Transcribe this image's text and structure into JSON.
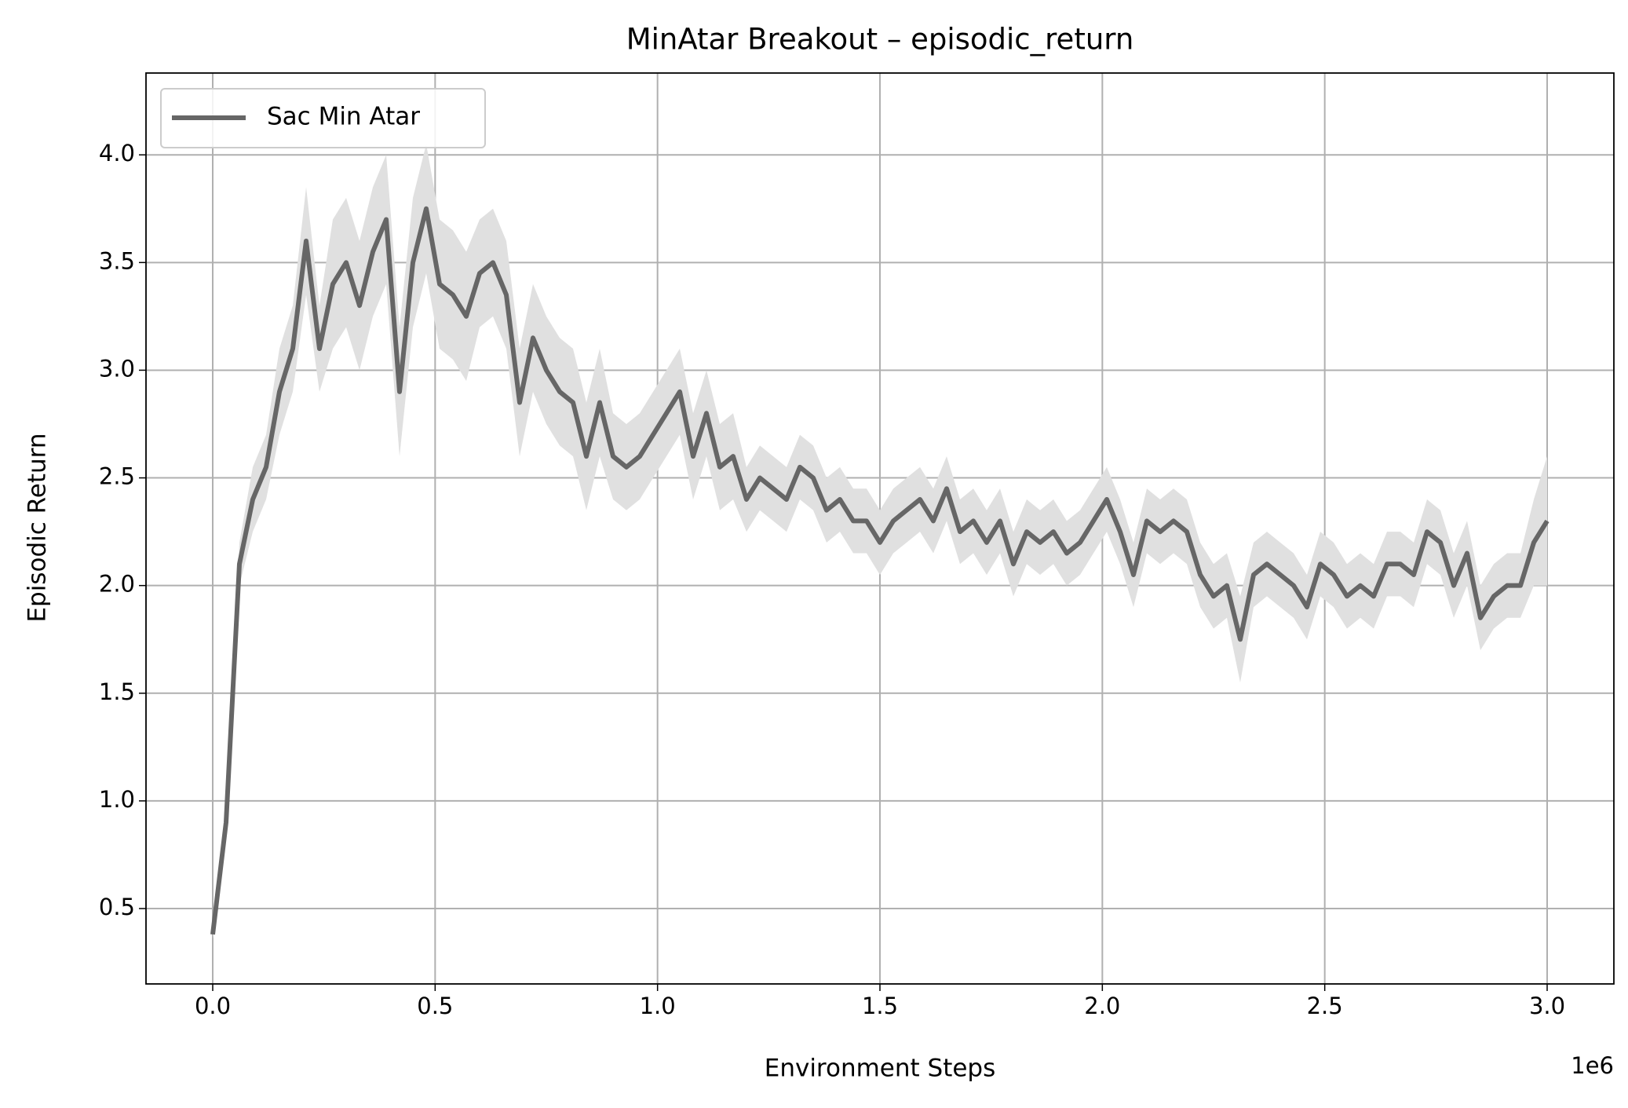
{
  "chart_data": {
    "type": "line",
    "title": "MinAtar Breakout – episodic_return",
    "x_label": "Environment Steps",
    "y_label": "Episodic Return",
    "x_offset_label": "1e6",
    "grid": true,
    "legend_position": "upper left",
    "x": [
      0,
      30000,
      60000,
      90000,
      120000,
      150000,
      180000,
      210000,
      240000,
      270000,
      300000,
      330000,
      360000,
      390000,
      420000,
      450000,
      480000,
      510000,
      540000,
      570000,
      600000,
      630000,
      660000,
      690000,
      720000,
      750000,
      780000,
      810000,
      840000,
      870000,
      900000,
      930000,
      960000,
      990000,
      1020000,
      1050000,
      1080000,
      1110000,
      1140000,
      1170000,
      1200000,
      1230000,
      1260000,
      1290000,
      1320000,
      1350000,
      1380000,
      1410000,
      1440000,
      1470000,
      1500000,
      1530000,
      1560000,
      1590000,
      1620000,
      1650000,
      1680000,
      1710000,
      1740000,
      1770000,
      1800000,
      1830000,
      1860000,
      1890000,
      1920000,
      1950000,
      1980000,
      2010000,
      2040000,
      2070000,
      2100000,
      2130000,
      2160000,
      2190000,
      2220000,
      2250000,
      2280000,
      2310000,
      2340000,
      2370000,
      2400000,
      2430000,
      2460000,
      2490000,
      2520000,
      2550000,
      2580000,
      2610000,
      2640000,
      2670000,
      2700000,
      2730000,
      2760000,
      2790000,
      2820000,
      2850000,
      2880000,
      2910000,
      2940000,
      2970000,
      3000000
    ],
    "series": [
      {
        "name": "Sac Min Atar",
        "color": "#666666",
        "band_color": "#e0e0e0",
        "values": [
          0.38,
          0.9,
          2.1,
          2.4,
          2.55,
          2.9,
          3.1,
          3.6,
          3.1,
          3.4,
          3.5,
          3.3,
          3.55,
          3.7,
          2.9,
          3.5,
          3.75,
          3.4,
          3.35,
          3.25,
          3.45,
          3.5,
          3.35,
          2.85,
          3.15,
          3.0,
          2.9,
          2.85,
          2.6,
          2.85,
          2.6,
          2.55,
          2.6,
          2.7,
          2.8,
          2.9,
          2.6,
          2.8,
          2.55,
          2.6,
          2.4,
          2.5,
          2.45,
          2.4,
          2.55,
          2.5,
          2.35,
          2.4,
          2.3,
          2.3,
          2.2,
          2.3,
          2.35,
          2.4,
          2.3,
          2.45,
          2.25,
          2.3,
          2.2,
          2.3,
          2.1,
          2.25,
          2.2,
          2.25,
          2.15,
          2.2,
          2.3,
          2.4,
          2.25,
          2.05,
          2.3,
          2.25,
          2.3,
          2.25,
          2.05,
          1.95,
          2.0,
          1.75,
          2.05,
          2.1,
          2.05,
          2.0,
          1.9,
          2.1,
          2.05,
          1.95,
          2.0,
          1.95,
          2.1,
          2.1,
          2.05,
          2.25,
          2.2,
          2.0,
          2.15,
          1.85,
          1.95,
          2.0,
          2.0,
          2.2,
          2.3
        ],
        "lower": [
          0.36,
          0.85,
          2.0,
          2.25,
          2.4,
          2.7,
          2.9,
          3.35,
          2.9,
          3.1,
          3.2,
          3.0,
          3.25,
          3.4,
          2.6,
          3.2,
          3.45,
          3.1,
          3.05,
          2.95,
          3.2,
          3.25,
          3.1,
          2.6,
          2.9,
          2.75,
          2.65,
          2.6,
          2.35,
          2.6,
          2.4,
          2.35,
          2.4,
          2.5,
          2.6,
          2.7,
          2.4,
          2.6,
          2.35,
          2.4,
          2.25,
          2.35,
          2.3,
          2.25,
          2.4,
          2.35,
          2.2,
          2.25,
          2.15,
          2.15,
          2.05,
          2.15,
          2.2,
          2.25,
          2.15,
          2.3,
          2.1,
          2.15,
          2.05,
          2.15,
          1.95,
          2.1,
          2.05,
          2.1,
          2.0,
          2.05,
          2.15,
          2.25,
          2.1,
          1.9,
          2.15,
          2.1,
          2.15,
          2.1,
          1.9,
          1.8,
          1.85,
          1.55,
          1.9,
          1.95,
          1.9,
          1.85,
          1.75,
          1.95,
          1.9,
          1.8,
          1.85,
          1.8,
          1.95,
          1.95,
          1.9,
          2.1,
          2.05,
          1.85,
          2.0,
          1.7,
          1.8,
          1.85,
          1.85,
          2.0,
          2.0
        ],
        "upper": [
          0.4,
          0.95,
          2.2,
          2.55,
          2.7,
          3.1,
          3.3,
          3.85,
          3.3,
          3.7,
          3.8,
          3.6,
          3.85,
          4.0,
          3.2,
          3.8,
          4.05,
          3.7,
          3.65,
          3.55,
          3.7,
          3.75,
          3.6,
          3.1,
          3.4,
          3.25,
          3.15,
          3.1,
          2.85,
          3.1,
          2.8,
          2.75,
          2.8,
          2.9,
          3.0,
          3.1,
          2.8,
          3.0,
          2.75,
          2.8,
          2.55,
          2.65,
          2.6,
          2.55,
          2.7,
          2.65,
          2.5,
          2.55,
          2.45,
          2.45,
          2.35,
          2.45,
          2.5,
          2.55,
          2.45,
          2.6,
          2.4,
          2.45,
          2.35,
          2.45,
          2.25,
          2.4,
          2.35,
          2.4,
          2.3,
          2.35,
          2.45,
          2.55,
          2.4,
          2.2,
          2.45,
          2.4,
          2.45,
          2.4,
          2.2,
          2.1,
          2.15,
          1.95,
          2.2,
          2.25,
          2.2,
          2.15,
          2.05,
          2.25,
          2.2,
          2.1,
          2.15,
          2.1,
          2.25,
          2.25,
          2.2,
          2.4,
          2.35,
          2.15,
          2.3,
          2.0,
          2.1,
          2.15,
          2.15,
          2.4,
          2.6
        ]
      }
    ],
    "xlim": [
      -150000,
      3150000
    ],
    "ylim": [
      0.15,
      4.38
    ],
    "xticks": [
      {
        "value": 0,
        "label": "0.0"
      },
      {
        "value": 500000,
        "label": "0.5"
      },
      {
        "value": 1000000,
        "label": "1.0"
      },
      {
        "value": 1500000,
        "label": "1.5"
      },
      {
        "value": 2000000,
        "label": "2.0"
      },
      {
        "value": 2500000,
        "label": "2.5"
      },
      {
        "value": 3000000,
        "label": "3.0"
      }
    ],
    "yticks": [
      0.5,
      {
        "value": 1,
        "label": "1.0"
      },
      1.5,
      {
        "value": 2,
        "label": "2.0"
      },
      2.5,
      {
        "value": 3,
        "label": "3.0"
      },
      3.5,
      {
        "value": 4,
        "label": "4.0"
      }
    ]
  }
}
